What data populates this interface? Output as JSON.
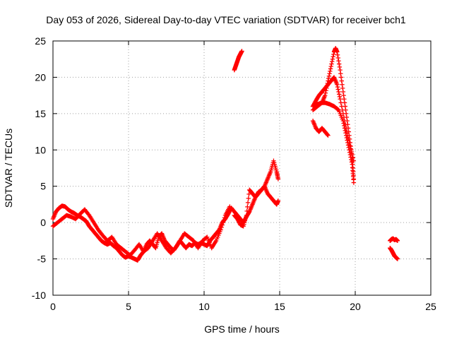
{
  "chart_data": {
    "type": "scatter",
    "title": "Day 053 of 2026, Sidereal Day-to-day VTEC variation (SDTVAR) for receiver bch1",
    "xlabel": "GPS time / hours",
    "ylabel": "SDTVAR / TECUs",
    "xlim": [
      0,
      25
    ],
    "ylim": [
      -10,
      25
    ],
    "xticks": [
      "0",
      "5",
      "10",
      "15",
      "20",
      "25"
    ],
    "yticks": [
      "-10",
      "-5",
      "0",
      "5",
      "10",
      "15",
      "20",
      "25"
    ],
    "grid": true,
    "marker": "+",
    "color": "#ff0000",
    "series": [
      {
        "name": "seg1",
        "x": [
          0.0,
          0.2,
          0.4,
          0.6,
          0.8,
          1.0,
          1.2,
          1.4,
          1.6,
          1.8,
          2.0,
          2.2,
          2.4,
          2.6,
          2.8,
          3.0,
          3.2,
          3.4,
          3.6,
          3.8,
          4.0,
          4.2,
          4.4,
          4.6,
          4.8,
          5.0,
          5.2,
          5.4,
          5.6,
          5.8,
          6.0,
          6.2,
          6.4,
          6.6,
          6.8,
          7.0,
          7.2,
          7.4,
          7.6,
          7.8,
          8.0,
          8.2,
          8.4,
          8.6,
          8.8,
          9.0,
          9.2,
          9.4,
          9.6,
          9.8,
          10.0,
          10.2,
          10.4,
          10.6,
          10.8,
          11.0,
          11.2,
          11.4,
          11.6,
          11.8
        ],
        "y": [
          0.5,
          1.5,
          2.0,
          2.3,
          2.2,
          1.8,
          1.5,
          1.3,
          1.0,
          0.8,
          0.5,
          0.2,
          -0.5,
          -1.0,
          -1.5,
          -2.0,
          -2.5,
          -2.8,
          -3.0,
          -2.8,
          -3.2,
          -3.5,
          -4.0,
          -4.5,
          -4.8,
          -4.6,
          -4.8,
          -5.0,
          -5.2,
          -4.5,
          -4.0,
          -3.0,
          -2.5,
          -3.0,
          -3.5,
          -2.0,
          -1.5,
          -2.5,
          -3.0,
          -3.5,
          -3.8,
          -3.2,
          -2.5,
          -3.0,
          -3.5,
          -3.0,
          -3.2,
          -2.8,
          -3.0,
          -2.8,
          -3.0,
          -3.2,
          -2.5,
          -2.0,
          -1.5,
          -1.0,
          0.0,
          0.5,
          1.2,
          2.0
        ]
      },
      {
        "name": "seg1b",
        "x": [
          0.0,
          0.3,
          0.6,
          0.9,
          1.2,
          1.5,
          1.8,
          2.1,
          2.4,
          2.7,
          3.0,
          3.3,
          3.6,
          3.9,
          4.2,
          4.5,
          4.8,
          5.1,
          5.4,
          5.7,
          6.0,
          6.3,
          6.6,
          6.9,
          7.2,
          7.5,
          7.8,
          8.1,
          8.4,
          8.7,
          9.0,
          9.3,
          9.6,
          9.9,
          10.2,
          10.5,
          10.8,
          11.1,
          11.4,
          11.7
        ],
        "y": [
          -0.5,
          0.0,
          0.5,
          1.0,
          0.8,
          0.5,
          1.2,
          1.8,
          1.0,
          0.0,
          -1.0,
          -1.8,
          -2.5,
          -2.0,
          -3.0,
          -3.5,
          -4.0,
          -4.5,
          -3.8,
          -3.0,
          -4.0,
          -3.5,
          -2.5,
          -1.5,
          -2.5,
          -3.5,
          -4.2,
          -3.5,
          -2.5,
          -1.5,
          -2.0,
          -2.5,
          -3.5,
          -2.5,
          -2.0,
          -3.5,
          -2.5,
          -1.0,
          1.0,
          2.2
        ]
      },
      {
        "name": "seg2",
        "x": [
          11.8,
          12.0,
          12.2,
          12.4,
          12.6,
          12.8,
          13.0,
          13.2,
          13.4,
          13.6,
          13.8,
          14.0,
          14.2,
          14.4,
          14.6,
          14.8,
          14.9
        ],
        "y": [
          2.0,
          1.5,
          1.0,
          0.5,
          0.0,
          0.8,
          1.5,
          2.5,
          3.5,
          4.0,
          4.5,
          5.0,
          6.0,
          7.0,
          8.5,
          7.0,
          6.0
        ]
      },
      {
        "name": "seg2b",
        "x": [
          12.0,
          12.2,
          12.4,
          12.6,
          12.8,
          13.0,
          13.2,
          13.4,
          13.6,
          13.8,
          14.0,
          14.2,
          14.4,
          14.6,
          14.8,
          14.9
        ],
        "y": [
          1.0,
          0.5,
          -0.3,
          -0.5,
          1.0,
          4.5,
          4.0,
          3.5,
          4.2,
          4.5,
          5.0,
          4.0,
          3.5,
          3.0,
          2.5,
          3.0
        ]
      },
      {
        "name": "seg3",
        "x": [
          12.0,
          12.1,
          12.2,
          12.3,
          12.4,
          12.5
        ],
        "y": [
          21.0,
          21.6,
          22.2,
          22.8,
          23.2,
          23.6
        ]
      },
      {
        "name": "seg4",
        "x": [
          17.2,
          17.5,
          17.8,
          18.0,
          18.2,
          18.4,
          18.6,
          18.7,
          18.8,
          19.0,
          19.2,
          19.4,
          19.6,
          19.8,
          19.9
        ],
        "y": [
          15.5,
          16.0,
          16.5,
          17.5,
          19.5,
          21.5,
          23.5,
          24.0,
          23.5,
          21.0,
          18.0,
          15.0,
          12.0,
          9.0,
          6.0
        ]
      },
      {
        "name": "seg4b",
        "x": [
          17.2,
          17.5,
          17.8,
          18.0,
          18.3,
          18.6,
          18.9,
          19.2,
          19.4,
          19.6,
          19.8,
          19.9
        ],
        "y": [
          16.0,
          16.3,
          16.5,
          16.5,
          16.3,
          16.0,
          15.5,
          14.0,
          12.0,
          10.0,
          8.0,
          5.5
        ]
      },
      {
        "name": "seg4c",
        "x": [
          17.2,
          17.4,
          17.6,
          17.8,
          18.0,
          18.2,
          18.4,
          18.6,
          18.8,
          19.0,
          19.3,
          19.6,
          19.9
        ],
        "y": [
          16.0,
          16.8,
          17.5,
          18.0,
          18.5,
          19.0,
          19.5,
          20.0,
          19.0,
          17.0,
          14.0,
          11.0,
          8.5
        ]
      },
      {
        "name": "seg5",
        "x": [
          17.2,
          17.4,
          17.6,
          17.8,
          18.0,
          18.2
        ],
        "y": [
          14.0,
          13.0,
          12.5,
          13.0,
          12.5,
          12.0
        ]
      },
      {
        "name": "seg6",
        "x": [
          22.3,
          22.4,
          22.5,
          22.6,
          22.7,
          22.8
        ],
        "y": [
          -2.5,
          -2.3,
          -2.2,
          -2.4,
          -2.3,
          -2.5
        ]
      },
      {
        "name": "seg7",
        "x": [
          22.3,
          22.4,
          22.5,
          22.6,
          22.7,
          22.8
        ],
        "y": [
          -3.5,
          -3.8,
          -4.2,
          -4.6,
          -4.8,
          -5.0
        ]
      }
    ]
  }
}
